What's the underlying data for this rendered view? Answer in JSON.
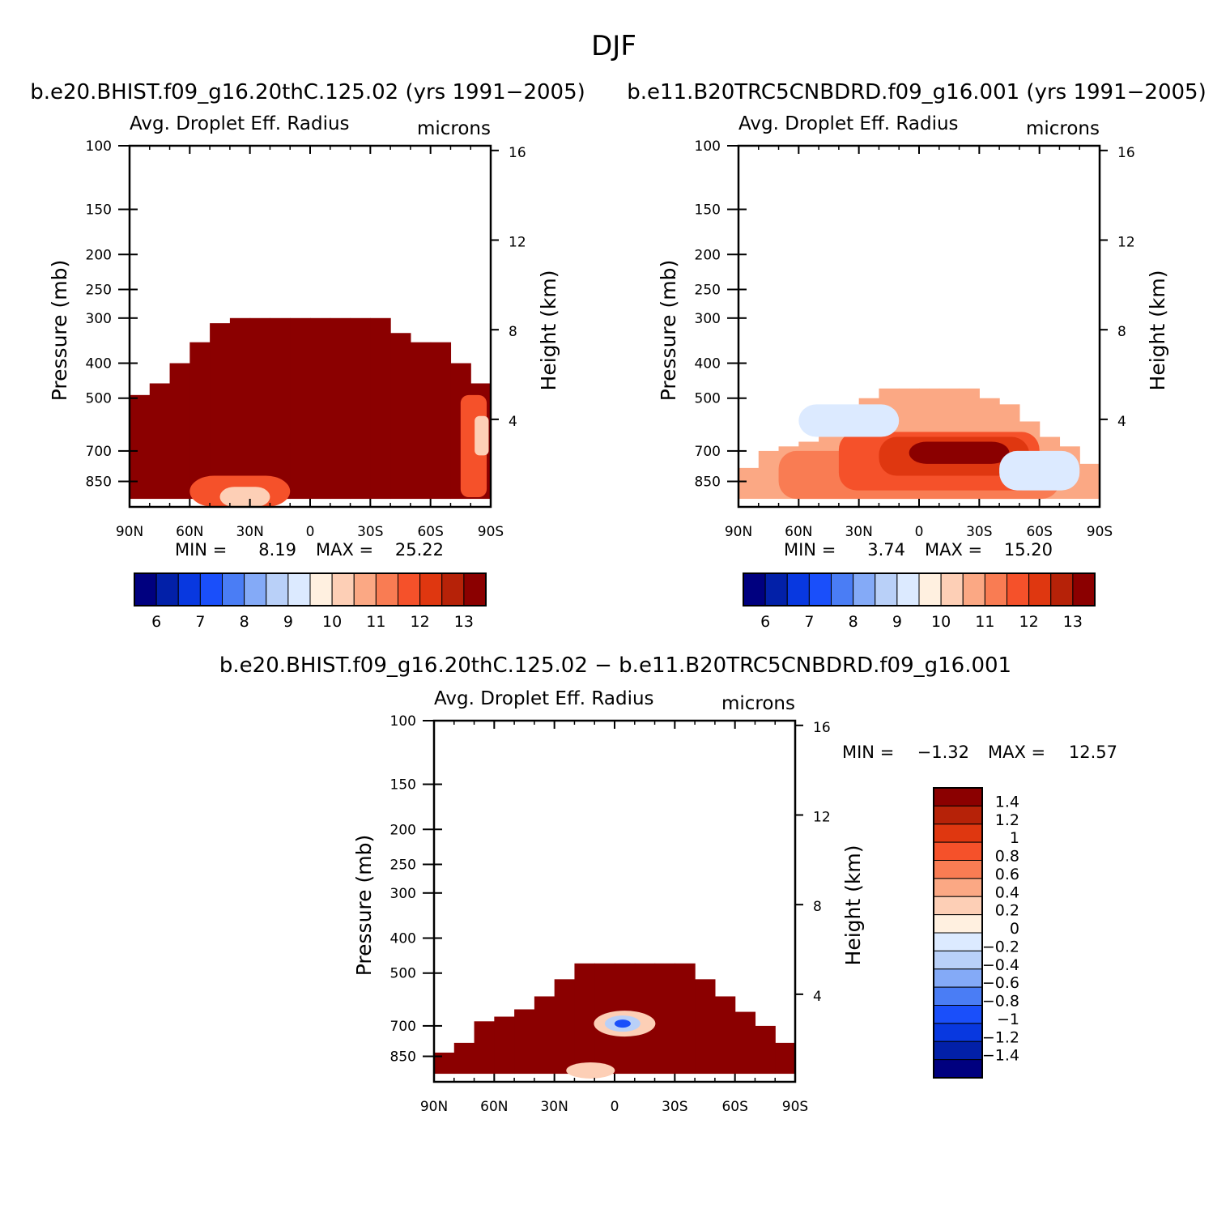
{
  "figure_title": "DJF",
  "colors": {
    "blue_to_red": [
      "#00007f",
      "#0220a8",
      "#0838e0",
      "#1a4ffa",
      "#4a7df5",
      "#84aaf7",
      "#b9d0f8",
      "#dceaff",
      "#fff0e0",
      "#fdcfb6",
      "#fba884",
      "#f97c53",
      "#f5512a",
      "#df3710",
      "#b62208",
      "#8b0000"
    ]
  },
  "chart_data": [
    {
      "type": "heatmap",
      "panel": "top-left",
      "title": "b.e20.BHIST.f09_g16.20thC.125.02 (yrs 1991−2005)",
      "field_label": "Avg. Droplet Eff. Radius",
      "units": "microns",
      "ylabel": "Pressure (mb)",
      "y2label": "Height (km)",
      "x_ticks": [
        "90N",
        "60N",
        "30N",
        "0",
        "30S",
        "60S",
        "90S"
      ],
      "x_values": [
        90,
        60,
        30,
        0,
        -30,
        -60,
        -90
      ],
      "y_ticks": [
        "100",
        "150",
        "200",
        "250",
        "300",
        "400",
        "500",
        "700",
        "850"
      ],
      "y_values": [
        100,
        150,
        200,
        250,
        300,
        400,
        500,
        700,
        850
      ],
      "y2_ticks": [
        "16",
        "12",
        "8",
        "4"
      ],
      "y2_values": [
        16,
        12,
        8,
        4
      ],
      "ylim": [
        100,
        1000
      ],
      "min_label": "MIN =",
      "min_value": "8.19",
      "max_label": "MAX =",
      "max_value": "25.22",
      "colorbar_ticks": [
        "6",
        "7",
        "8",
        "9",
        "10",
        "11",
        "12",
        "13"
      ],
      "colorbar_levels": [
        6,
        6.5,
        7,
        7.5,
        8,
        8.5,
        9,
        9.5,
        10,
        10.5,
        11,
        11.5,
        12,
        12.5,
        13
      ],
      "field_cells": {
        "lat_edges": [
          90,
          80,
          70,
          60,
          50,
          40,
          30,
          20,
          10,
          0,
          -10,
          -20,
          -30,
          -40,
          -50,
          -60,
          -70,
          -80,
          -90
        ],
        "p_top": [
          490,
          455,
          400,
          350,
          310,
          300,
          300,
          300,
          300,
          300,
          300,
          300,
          300,
          330,
          350,
          350,
          400,
          455
        ],
        "p_bottom": 950,
        "level": 15
      }
    },
    {
      "type": "heatmap",
      "panel": "top-right",
      "title": "b.e11.B20TRC5CNBDRD.f09_g16.001 (yrs 1991−2005)",
      "field_label": "Avg. Droplet Eff. Radius",
      "units": "microns",
      "ylabel": "Pressure (mb)",
      "y2label": "Height (km)",
      "x_ticks": [
        "90N",
        "60N",
        "30N",
        "0",
        "30S",
        "60S",
        "90S"
      ],
      "x_values": [
        90,
        60,
        30,
        0,
        -30,
        -60,
        -90
      ],
      "y_ticks": [
        "100",
        "150",
        "200",
        "250",
        "300",
        "400",
        "500",
        "700",
        "850"
      ],
      "y_values": [
        100,
        150,
        200,
        250,
        300,
        400,
        500,
        700,
        850
      ],
      "y2_ticks": [
        "16",
        "12",
        "8",
        "4"
      ],
      "y2_values": [
        16,
        12,
        8,
        4
      ],
      "ylim": [
        100,
        1000
      ],
      "min_label": "MIN =",
      "min_value": "3.74",
      "max_label": "MAX =",
      "max_value": "15.20",
      "colorbar_ticks": [
        "6",
        "7",
        "8",
        "9",
        "10",
        "11",
        "12",
        "13"
      ],
      "colorbar_levels": [
        6,
        6.5,
        7,
        7.5,
        8,
        8.5,
        9,
        9.5,
        10,
        10.5,
        11,
        11.5,
        12,
        12.5,
        13
      ],
      "field_cells": {
        "lat_edges": [
          90,
          80,
          70,
          60,
          50,
          40,
          30,
          20,
          10,
          0,
          -10,
          -20,
          -30,
          -40,
          -50,
          -60,
          -70,
          -80,
          -90
        ],
        "p_top": [
          780,
          700,
          680,
          660,
          630,
          580,
          500,
          470,
          470,
          470,
          470,
          470,
          500,
          520,
          580,
          640,
          680,
          760
        ],
        "p_bottom": 950,
        "level": 10
      }
    },
    {
      "type": "heatmap",
      "panel": "bottom",
      "title": "b.e20.BHIST.f09_g16.20thC.125.02 − b.e11.B20TRC5CNBDRD.f09_g16.001",
      "field_label": "Avg. Droplet Eff. Radius",
      "units": "microns",
      "ylabel": "Pressure (mb)",
      "y2label": "Height (km)",
      "x_ticks": [
        "90N",
        "60N",
        "30N",
        "0",
        "30S",
        "60S",
        "90S"
      ],
      "x_values": [
        90,
        60,
        30,
        0,
        -30,
        -60,
        -90
      ],
      "y_ticks": [
        "100",
        "150",
        "200",
        "250",
        "300",
        "400",
        "500",
        "700",
        "850"
      ],
      "y_values": [
        100,
        150,
        200,
        250,
        300,
        400,
        500,
        700,
        850
      ],
      "y2_ticks": [
        "16",
        "12",
        "8",
        "4"
      ],
      "y2_values": [
        16,
        12,
        8,
        4
      ],
      "ylim": [
        100,
        1000
      ],
      "min_label": "MIN =",
      "min_value": "−1.32",
      "max_label": "MAX =",
      "max_value": "12.57",
      "colorbar_ticks": [
        "1.4",
        "1.2",
        "1",
        "0.8",
        "0.6",
        "0.4",
        "0.2",
        "0",
        "−0.2",
        "−0.4",
        "−0.6",
        "−0.8",
        "−1",
        "−1.2",
        "−1.4"
      ],
      "colorbar_levels": [
        1.4,
        1.2,
        1,
        0.8,
        0.6,
        0.4,
        0.2,
        0,
        -0.2,
        -0.4,
        -0.6,
        -0.8,
        -1,
        -1.2,
        -1.4
      ],
      "field_cells": {
        "lat_edges": [
          90,
          80,
          70,
          60,
          50,
          40,
          30,
          20,
          10,
          0,
          -10,
          -20,
          -30,
          -40,
          -50,
          -60,
          -70,
          -80,
          -90
        ],
        "p_top": [
          830,
          780,
          680,
          660,
          630,
          580,
          520,
          470,
          470,
          470,
          470,
          470,
          470,
          520,
          580,
          640,
          700,
          780
        ],
        "p_bottom": 950,
        "level": 15
      }
    }
  ]
}
